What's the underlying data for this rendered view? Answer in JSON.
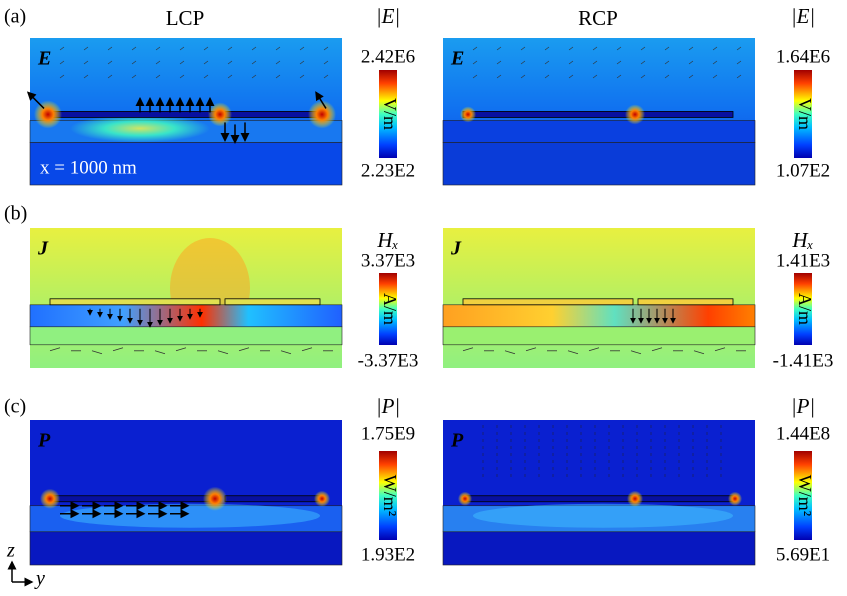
{
  "columns": [
    "LCP",
    "RCP"
  ],
  "rows": [
    {
      "label": "(a)",
      "panels": [
        {
          "field": "E",
          "title": "|E|",
          "max": "2.42E6",
          "min": "2.23E2",
          "unit": "V/m",
          "note": "x = 1000 nm"
        },
        {
          "field": "E",
          "title": "|E|",
          "max": "1.64E6",
          "min": "1.07E2",
          "unit": "V/m"
        }
      ]
    },
    {
      "label": "(b)",
      "panels": [
        {
          "field": "J",
          "title": "Hₓ",
          "max": "3.37E3",
          "min": "-3.37E3",
          "unit": "A/m"
        },
        {
          "field": "J",
          "title": "Hₓ",
          "max": "1.41E3",
          "min": "-1.41E3",
          "unit": "A/m"
        }
      ]
    },
    {
      "label": "(c)",
      "panels": [
        {
          "field": "P",
          "title": "|P|",
          "max": "1.75E9",
          "min": "1.93E2",
          "unit": "W/m²"
        },
        {
          "field": "P",
          "title": "|P|",
          "max": "1.44E8",
          "min": "5.69E1",
          "unit": "W/m²"
        }
      ]
    }
  ],
  "axes": {
    "vertical": "z",
    "horizontal": "y"
  }
}
